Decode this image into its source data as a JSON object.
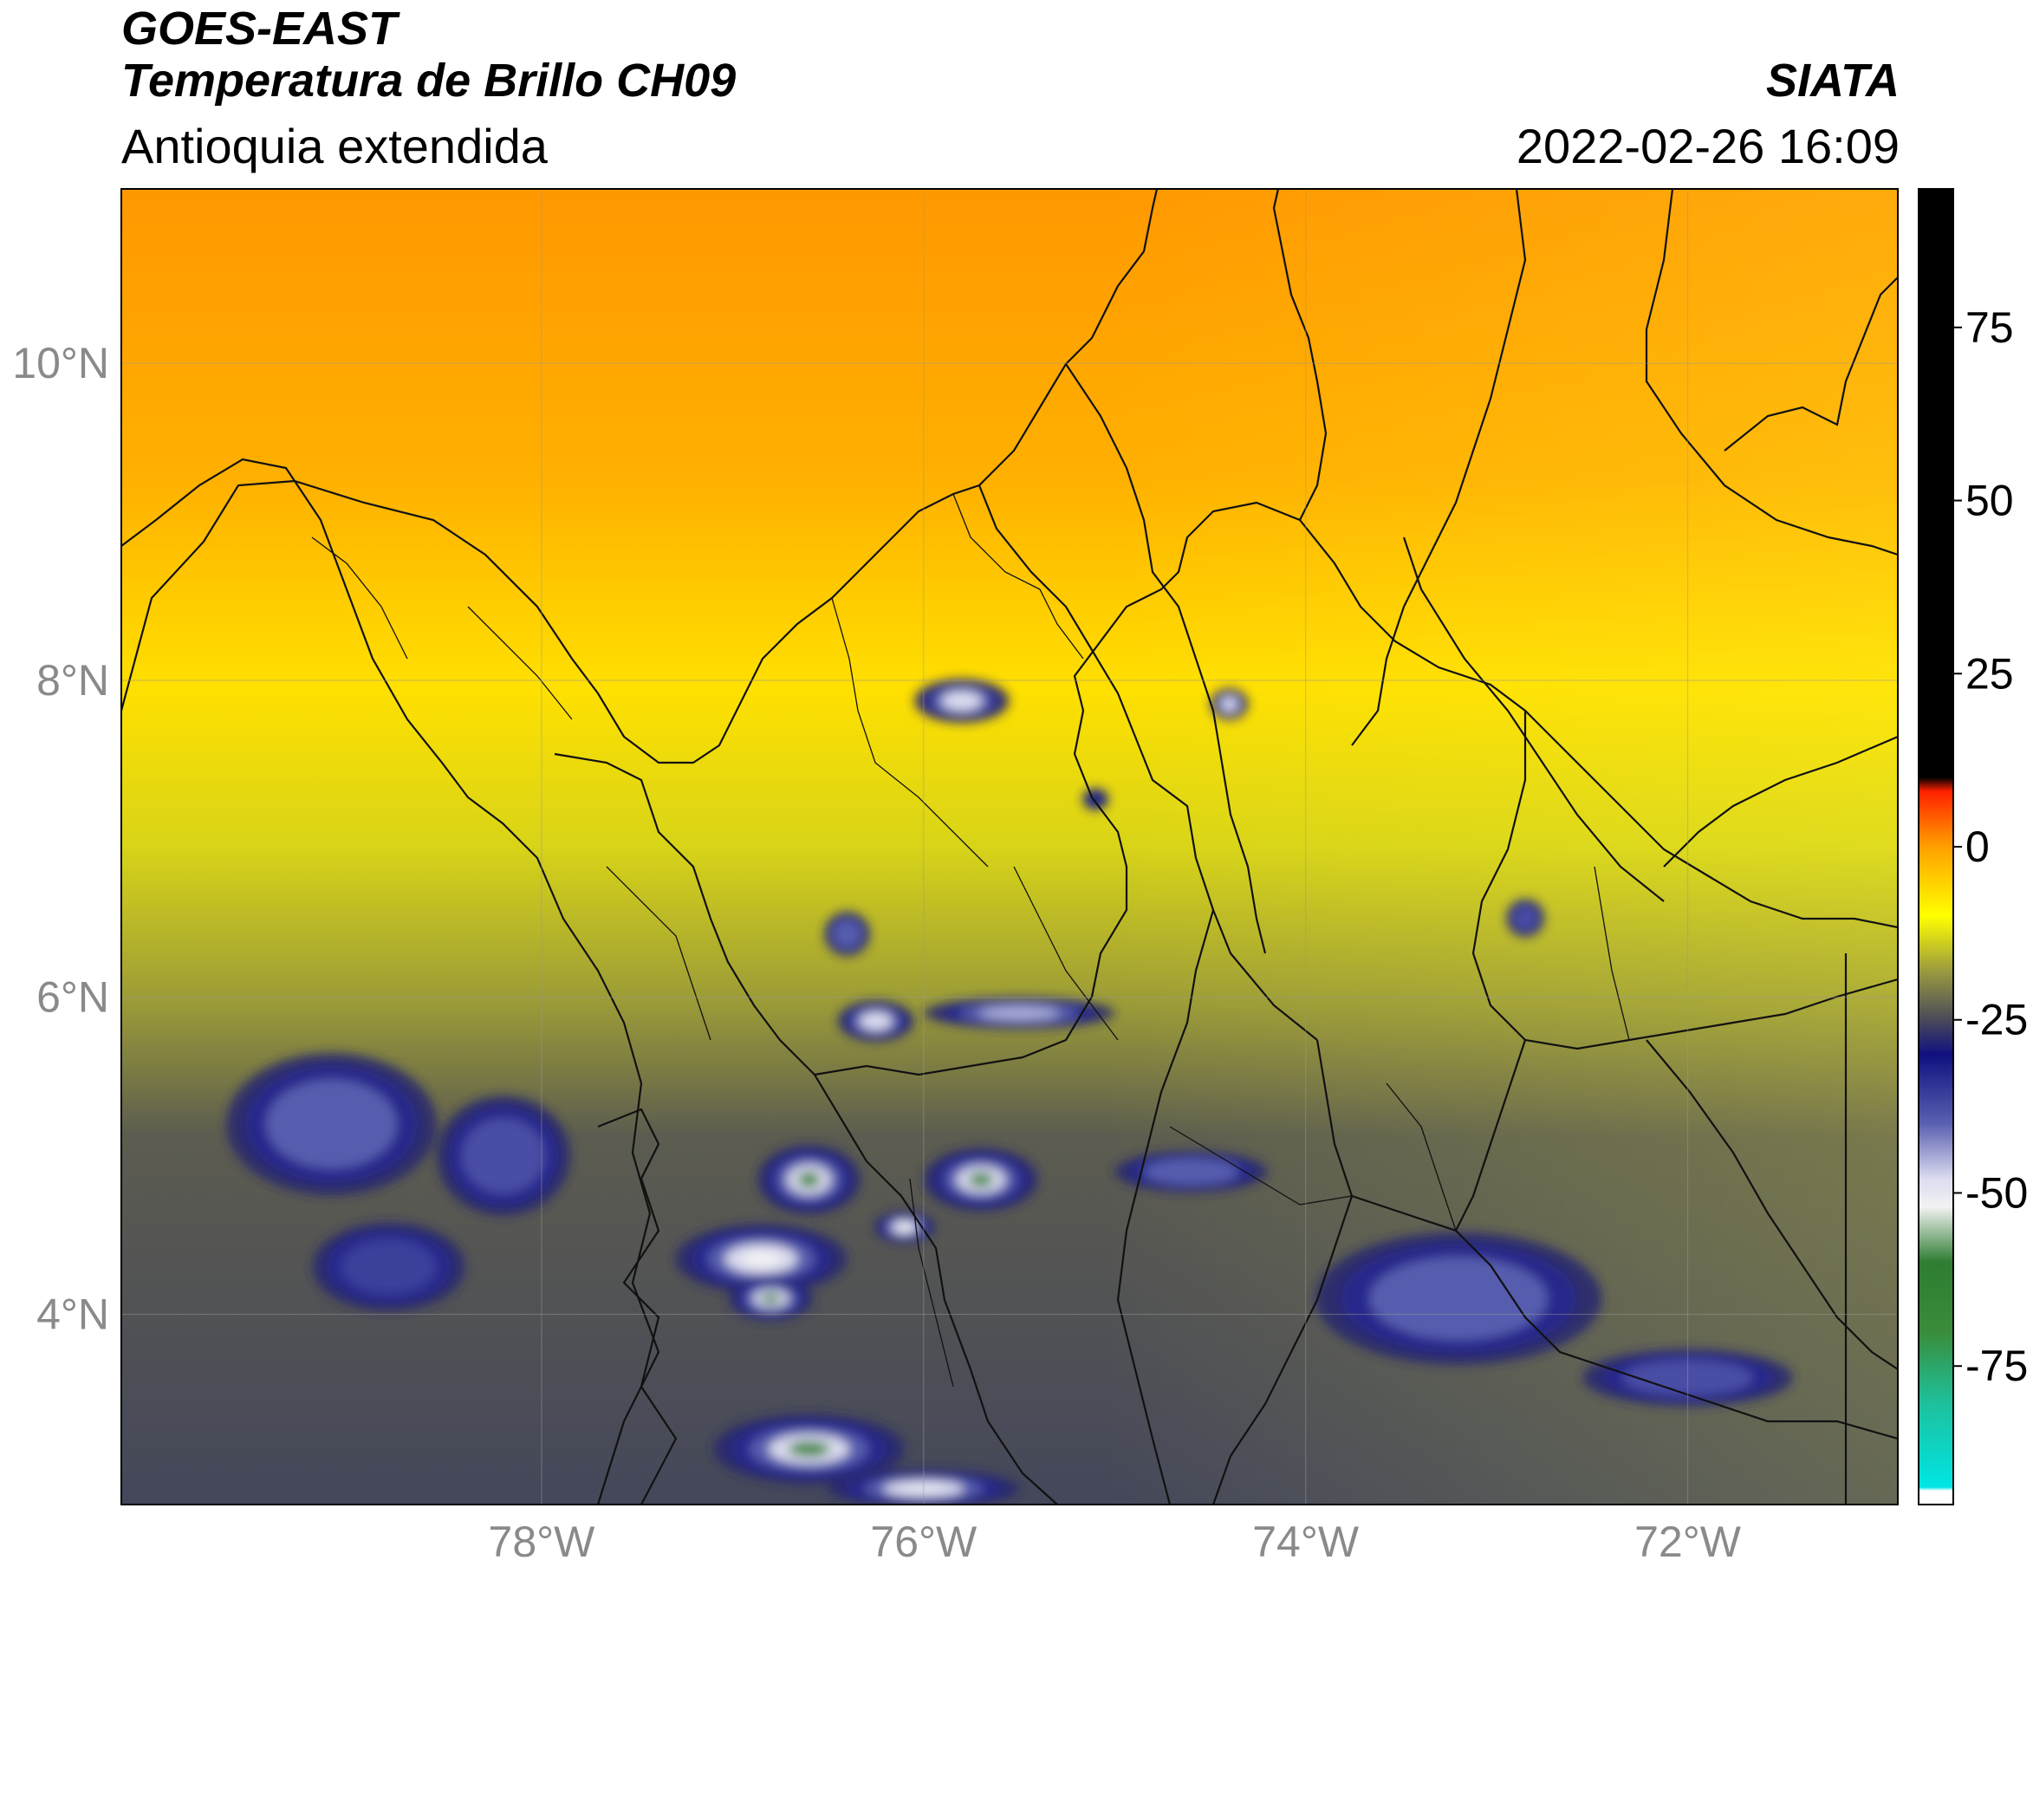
{
  "header": {
    "satellite": "GOES-EAST",
    "product": "Temperatura de Brillo CH09",
    "region": "Antioquia extendida",
    "organization": "SIATA",
    "datetime": "2022-02-26 16:09"
  },
  "map": {
    "lon_range": [
      -80.2,
      -70.9
    ],
    "lat_range": [
      2.8,
      11.1
    ],
    "lat_ticks": [
      {
        "value": 10,
        "label": "10°N"
      },
      {
        "value": 8,
        "label": "8°N"
      },
      {
        "value": 6,
        "label": "6°N"
      },
      {
        "value": 4,
        "label": "4°N"
      }
    ],
    "lon_ticks": [
      {
        "value": -78,
        "label": "78°W"
      },
      {
        "value": -76,
        "label": "76°W"
      },
      {
        "value": -74,
        "label": "74°W"
      },
      {
        "value": -72,
        "label": "72°W"
      }
    ],
    "gridlines": true,
    "convective_cells": [
      {
        "lon": -79.1,
        "lat": 5.2,
        "rlon": 0.55,
        "rlat": 0.45,
        "temp": -40
      },
      {
        "lon": -78.2,
        "lat": 5.0,
        "rlon": 0.35,
        "rlat": 0.38,
        "temp": -38
      },
      {
        "lon": -78.8,
        "lat": 4.3,
        "rlon": 0.4,
        "rlat": 0.28,
        "temp": -36
      },
      {
        "lon": -75.8,
        "lat": 7.87,
        "rlon": 0.25,
        "rlat": 0.14,
        "temp": -48
      },
      {
        "lon": -74.4,
        "lat": 7.85,
        "rlon": 0.1,
        "rlat": 0.1,
        "temp": -48
      },
      {
        "lon": -76.4,
        "lat": 6.4,
        "rlon": 0.12,
        "rlat": 0.14,
        "temp": -42
      },
      {
        "lon": -76.25,
        "lat": 5.85,
        "rlon": 0.2,
        "rlat": 0.13,
        "temp": -48
      },
      {
        "lon": -75.5,
        "lat": 5.9,
        "rlon": 0.5,
        "rlat": 0.1,
        "temp": -45
      },
      {
        "lon": -76.6,
        "lat": 4.85,
        "rlon": 0.27,
        "rlat": 0.22,
        "temp": -60
      },
      {
        "lon": -75.7,
        "lat": 4.85,
        "rlon": 0.3,
        "rlat": 0.2,
        "temp": -60
      },
      {
        "lon": -76.1,
        "lat": 4.55,
        "rlon": 0.16,
        "rlat": 0.1,
        "temp": -52
      },
      {
        "lon": -76.85,
        "lat": 4.35,
        "rlon": 0.45,
        "rlat": 0.22,
        "temp": -52
      },
      {
        "lon": -76.8,
        "lat": 4.1,
        "rlon": 0.22,
        "rlat": 0.14,
        "temp": -60
      },
      {
        "lon": -74.6,
        "lat": 4.9,
        "rlon": 0.4,
        "rlat": 0.13,
        "temp": -44
      },
      {
        "lon": -73.2,
        "lat": 4.1,
        "rlon": 0.75,
        "rlat": 0.42,
        "temp": -44
      },
      {
        "lon": -72.0,
        "lat": 3.6,
        "rlon": 0.55,
        "rlat": 0.18,
        "temp": -38
      },
      {
        "lon": -76.6,
        "lat": 3.15,
        "rlon": 0.5,
        "rlat": 0.22,
        "temp": -60
      },
      {
        "lon": -76.0,
        "lat": 2.9,
        "rlon": 0.5,
        "rlat": 0.12,
        "temp": -50
      },
      {
        "lon": -72.85,
        "lat": 6.5,
        "rlon": 0.1,
        "rlat": 0.12,
        "temp": -38
      },
      {
        "lon": -75.1,
        "lat": 7.25,
        "rlon": 0.07,
        "rlat": 0.07,
        "temp": -32
      }
    ]
  },
  "colorbar": {
    "min": -95,
    "max": 95,
    "ticks": [
      {
        "value": 75,
        "label": "75"
      },
      {
        "value": 50,
        "label": "50"
      },
      {
        "value": 25,
        "label": "25"
      },
      {
        "value": 0,
        "label": "0"
      },
      {
        "value": -25,
        "label": "-25"
      },
      {
        "value": -50,
        "label": "-50"
      },
      {
        "value": -75,
        "label": "-75"
      }
    ],
    "stops": [
      {
        "value": -95,
        "color": "#ffffff"
      },
      {
        "value": -93,
        "color": "#ffffff"
      },
      {
        "value": -92.5,
        "color": "#00e5e5"
      },
      {
        "value": -80,
        "color": "#1fbf9a"
      },
      {
        "value": -70,
        "color": "#3a8c3a"
      },
      {
        "value": -60,
        "color": "#2e7d32"
      },
      {
        "value": -52,
        "color": "#f2f2f2"
      },
      {
        "value": -48,
        "color": "#dcdcf0"
      },
      {
        "value": -40,
        "color": "#5a60b0"
      },
      {
        "value": -30,
        "color": "#10107f"
      },
      {
        "value": -25,
        "color": "#4a4a5a"
      },
      {
        "value": -18,
        "color": "#9a9a40"
      },
      {
        "value": -10,
        "color": "#ffff00"
      },
      {
        "value": 0,
        "color": "#ffa000"
      },
      {
        "value": 8,
        "color": "#ff2000"
      },
      {
        "value": 10,
        "color": "#000000"
      },
      {
        "value": 95,
        "color": "#000000"
      }
    ]
  }
}
